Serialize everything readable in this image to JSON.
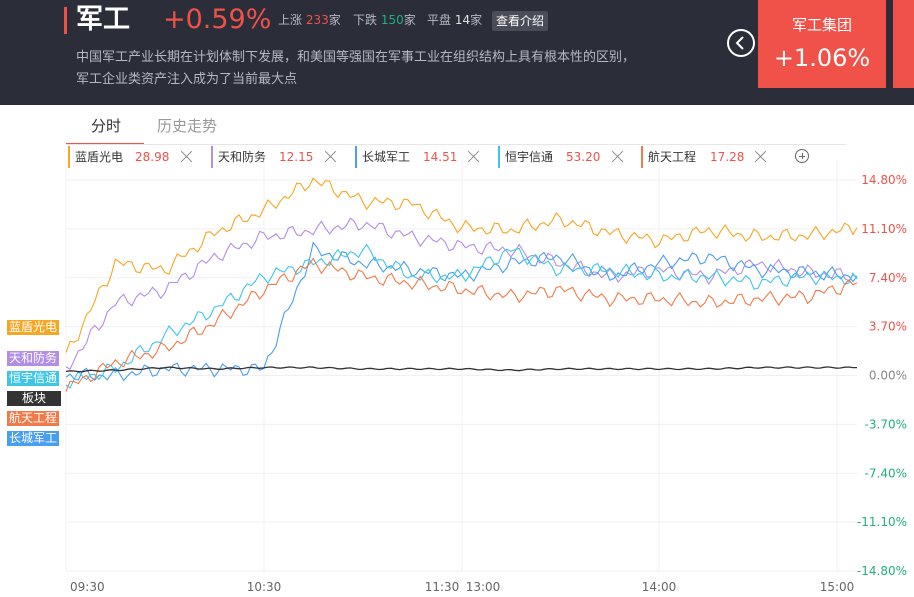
{
  "header": {
    "title": "军工",
    "change_pct": "+0.59%",
    "up_label": "上涨",
    "up_count": "233",
    "down_label": "下跌",
    "down_count": "150",
    "flat_label": "平盘",
    "flat_count": "14",
    "unit": "家",
    "intro_button": "查看介绍",
    "description_line1": "中国军工产业长期在计划体制下发展，和美国等强国在军事工业在组织结构上具有根本性的区别，",
    "description_line2": "军工企业类资产注入成为了当前最大点",
    "back_icon": "chevron-left-icon"
  },
  "featured": {
    "name": "军工集团",
    "change_pct": "+1.06%"
  },
  "tabs": [
    "分时",
    "历史走势"
  ],
  "active_tab": "分时",
  "stocks": [
    {
      "name": "蓝盾光电",
      "price": "28.98",
      "color": "#f5a623"
    },
    {
      "name": "天和防务",
      "price": "12.15",
      "color": "#b38ee6"
    },
    {
      "name": "长城军工",
      "price": "14.51",
      "color": "#4a9ef0"
    },
    {
      "name": "恒宇信通",
      "price": "53.20",
      "color": "#3ec6e8"
    },
    {
      "name": "航天工程",
      "price": "17.28",
      "color": "#f07a4a"
    }
  ],
  "add_icon": "plus-circle-icon",
  "close_icon": "close-icon",
  "chart_data": {
    "type": "line",
    "x_ticks": [
      "09:30",
      "10:30",
      "11:30",
      "13:00",
      "14:00",
      "15:00"
    ],
    "y_ticks": [
      "14.80%",
      "11.10%",
      "7.40%",
      "3.70%",
      "0.00%",
      "-3.70%",
      "-7.40%",
      "-11.10%",
      "-14.80%"
    ],
    "ylim": [
      -14.8,
      14.8
    ],
    "x_points": [
      "09:30",
      "09:45",
      "10:00",
      "10:15",
      "10:30",
      "10:45",
      "11:00",
      "11:15",
      "11:30/13:00",
      "13:15",
      "13:30",
      "13:45",
      "14:00",
      "14:15",
      "14:30",
      "14:45",
      "15:00"
    ],
    "series": [
      {
        "name": "蓝盾光电",
        "color": "#f5a623",
        "values": [
          1.5,
          8.5,
          8.0,
          10.8,
          12.5,
          14.8,
          13.2,
          13.0,
          11.2,
          11.0,
          11.8,
          10.8,
          10.2,
          11.0,
          10.5,
          10.6,
          11.2
        ]
      },
      {
        "name": "天和防务",
        "color": "#b38ee6",
        "values": [
          0.5,
          5.5,
          6.5,
          9.0,
          10.5,
          11.0,
          11.5,
          10.5,
          9.8,
          9.5,
          8.5,
          7.5,
          8.0,
          7.5,
          8.5,
          7.8,
          7.5
        ]
      },
      {
        "name": "长城军工",
        "color": "#4a9ef0",
        "values": [
          0.0,
          0.0,
          0.5,
          0.5,
          0.5,
          9.5,
          8.5,
          8.0,
          7.5,
          8.5,
          9.0,
          7.5,
          8.5,
          9.0,
          8.0,
          7.8,
          7.5
        ]
      },
      {
        "name": "恒宇信通",
        "color": "#3ec6e8",
        "values": [
          -0.5,
          0.5,
          3.0,
          5.0,
          7.5,
          8.5,
          9.5,
          7.5,
          7.5,
          9.5,
          8.0,
          8.0,
          7.5,
          7.5,
          7.0,
          7.5,
          7.3
        ]
      },
      {
        "name": "航天工程",
        "color": "#f07a4a",
        "values": [
          -1.0,
          1.0,
          2.0,
          4.0,
          6.5,
          8.5,
          7.5,
          7.0,
          6.5,
          6.0,
          6.5,
          5.8,
          5.8,
          5.5,
          5.8,
          6.0,
          7.0
        ]
      },
      {
        "name": "板块",
        "color": "#333333",
        "values": [
          0.3,
          0.4,
          0.6,
          0.5,
          0.6,
          0.6,
          0.5,
          0.5,
          0.5,
          0.4,
          0.5,
          0.5,
          0.5,
          0.5,
          0.6,
          0.6,
          0.6
        ]
      }
    ],
    "legend_placement": "left",
    "left_labels": [
      {
        "name": "蓝盾光电",
        "color": "#f5a623"
      },
      {
        "name": "天和防务",
        "color": "#b38ee6"
      },
      {
        "name": "恒宇信通",
        "color": "#3ec6e8"
      },
      {
        "name": "板块",
        "color": "#333333"
      },
      {
        "name": "航天工程",
        "color": "#f07a4a"
      },
      {
        "name": "长城军工",
        "color": "#4a9ef0"
      }
    ],
    "colors": {
      "positive": "#f0524a",
      "zero": "#888888",
      "negative": "#22b07b"
    }
  }
}
